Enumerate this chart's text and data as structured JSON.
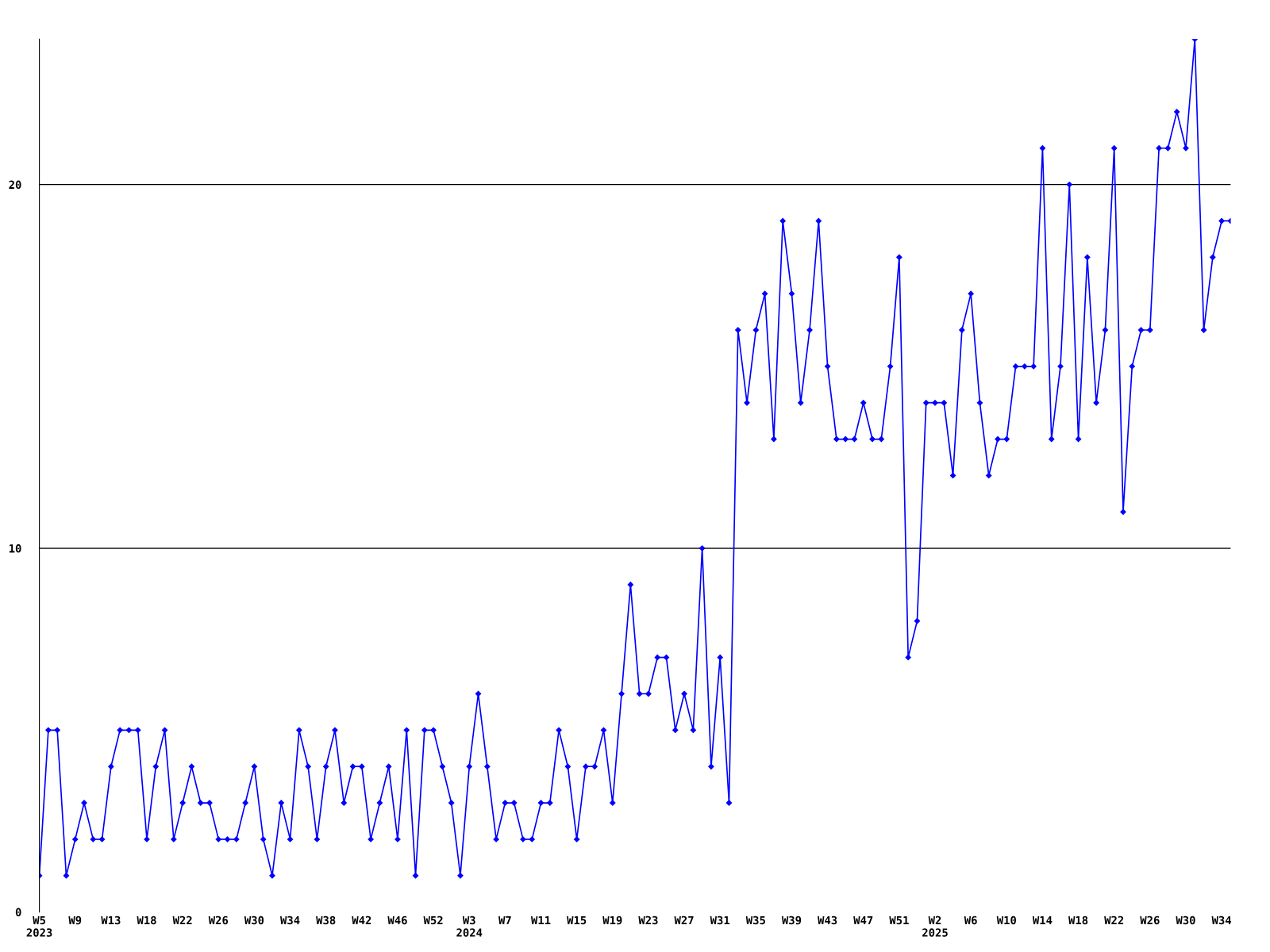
{
  "chart_data": {
    "type": "line",
    "categories": [
      "W5\n2023",
      null,
      null,
      null,
      "W9",
      null,
      null,
      null,
      "W13",
      null,
      null,
      null,
      "W18",
      null,
      null,
      null,
      "W22",
      null,
      null,
      null,
      "W26",
      null,
      null,
      null,
      "W30",
      null,
      null,
      null,
      "W34",
      null,
      null,
      null,
      "W38",
      null,
      null,
      null,
      "W42",
      null,
      null,
      null,
      "W46",
      null,
      null,
      null,
      "W52",
      null,
      null,
      null,
      "W3\n2024",
      null,
      null,
      null,
      "W7",
      null,
      null,
      null,
      "W11",
      null,
      null,
      null,
      "W15",
      null,
      null,
      null,
      "W19",
      null,
      null,
      null,
      "W23",
      null,
      null,
      null,
      "W27",
      null,
      null,
      null,
      "W31",
      null,
      null,
      null,
      "W35",
      null,
      null,
      null,
      "W39",
      null,
      null,
      null,
      "W43",
      null,
      null,
      null,
      "W47",
      null,
      null,
      null,
      "W51",
      null,
      null,
      null,
      "W2\n2025",
      null,
      null,
      null,
      "W6",
      null,
      null,
      null,
      "W10",
      null,
      null,
      null,
      "W14",
      null,
      null,
      null,
      "W18",
      null,
      null,
      null,
      "W22",
      null,
      null,
      null,
      "W26",
      null,
      null,
      null,
      "W30",
      null,
      null,
      null,
      "W34",
      null
    ],
    "series": [
      {
        "color": "#0000ff",
        "values": [
          1,
          5,
          5,
          1,
          2,
          3,
          2,
          2,
          4,
          5,
          5,
          5,
          2,
          4,
          5,
          2,
          3,
          4,
          3,
          3,
          2,
          2,
          2,
          3,
          4,
          2,
          1,
          3,
          2,
          5,
          4,
          2,
          4,
          5,
          3,
          4,
          4,
          2,
          3,
          4,
          2,
          5,
          1,
          5,
          5,
          4,
          3,
          1,
          4,
          6,
          4,
          2,
          3,
          3,
          2,
          2,
          3,
          3,
          5,
          4,
          2,
          4,
          4,
          5,
          3,
          6,
          9,
          6,
          6,
          7,
          7,
          5,
          6,
          5,
          10,
          4,
          7,
          3,
          16,
          14,
          16,
          17,
          13,
          19,
          17,
          14,
          16,
          19,
          15,
          13,
          13,
          13,
          14,
          13,
          13,
          15,
          18,
          7,
          8,
          14,
          14,
          14,
          12,
          16,
          17,
          14,
          12,
          13,
          13,
          15,
          15,
          15,
          21,
          13,
          15,
          20,
          13,
          18,
          14,
          16,
          21,
          11,
          15,
          16,
          16,
          21,
          21,
          22,
          21,
          24,
          16,
          18,
          19,
          19
        ]
      }
    ],
    "ylim": [
      0,
      24
    ],
    "yticks": [
      0,
      10,
      20
    ],
    "grid": "y",
    "marker": "diamond",
    "line_style": "solid"
  }
}
